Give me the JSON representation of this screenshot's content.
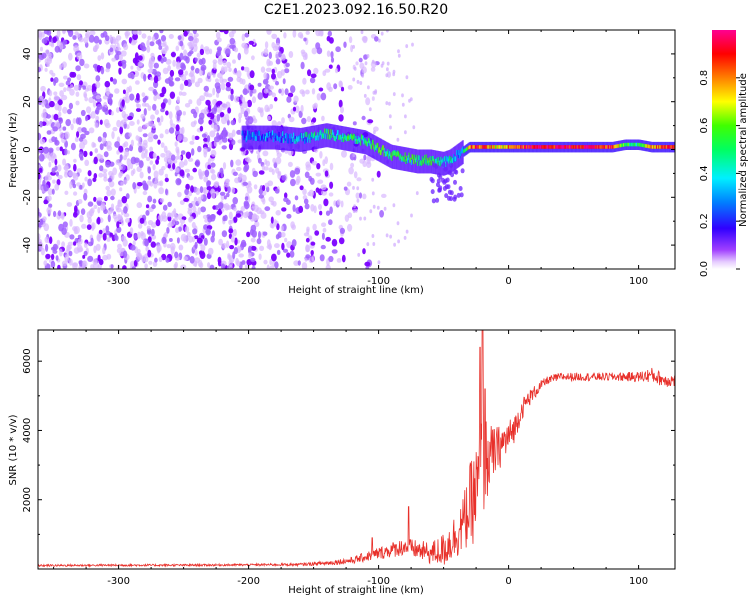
{
  "figure_title": "C2E1.2023.092.16.50.R20",
  "colors": {
    "axes": "#000000",
    "snr_line": "#e8302a",
    "sparse_dot": "#7b00ff",
    "background": "#ffffff"
  },
  "chart_data": [
    {
      "type": "heatmap",
      "title": "",
      "xlabel": "Height of straight line (km)",
      "ylabel": "Frequency (Hz)",
      "xlim": [
        -362,
        128
      ],
      "ylim": [
        -50,
        50
      ],
      "xticks": [
        -300,
        -200,
        -100,
        0,
        100
      ],
      "xtick_labels": [
        "-300",
        "-200",
        "-100",
        "0",
        "100"
      ],
      "yticks": [
        -40,
        -20,
        0,
        20,
        40
      ],
      "ytick_labels": [
        "-40",
        "-20",
        "0",
        "20",
        "40"
      ],
      "grid": false,
      "colorbar": {
        "label": "Normalized spectral amplitude",
        "range": [
          0,
          1
        ],
        "ticks": [
          0.0,
          0.2,
          0.4,
          0.6,
          0.8
        ],
        "tick_labels": [
          "0.0",
          "0.2",
          "0.4",
          "0.6",
          "0.8"
        ],
        "colormap": "gist_rainbow (white at 0, violet/blue low, green mid, red/magenta high)"
      },
      "noise_region": {
        "x_range": [
          -362,
          -120
        ],
        "description": "scattered low-amplitude noise across all frequencies"
      },
      "ridge": {
        "x": [
          -200,
          -180,
          -160,
          -150,
          -140,
          -130,
          -120,
          -110,
          -100,
          -90,
          -80,
          -70,
          -60,
          -50,
          -45,
          -40,
          -35,
          -30,
          -20,
          -10,
          0,
          20,
          40,
          60,
          80,
          90,
          100,
          110,
          128
        ],
        "freq": [
          5,
          5,
          4,
          5,
          6,
          5,
          4,
          3,
          0,
          -3,
          -4,
          -5,
          -5,
          -6,
          -5,
          -3,
          -1,
          1,
          1,
          1,
          1,
          1,
          1,
          1,
          1,
          2,
          2,
          1,
          1
        ],
        "amplitude": [
          0.3,
          0.3,
          0.35,
          0.45,
          0.5,
          0.5,
          0.5,
          0.5,
          0.55,
          0.5,
          0.5,
          0.5,
          0.5,
          0.45,
          0.4,
          0.35,
          0.4,
          0.85,
          0.9,
          0.7,
          0.8,
          0.95,
          0.95,
          0.95,
          0.9,
          0.55,
          0.5,
          0.8,
          0.85
        ]
      }
    },
    {
      "type": "line",
      "title": "",
      "xlabel": "Height of straight line (km)",
      "ylabel": "SNR (10 * v/v)",
      "xlim": [
        -362,
        128
      ],
      "ylim": [
        0,
        6900
      ],
      "xticks": [
        -300,
        -200,
        -100,
        0,
        100
      ],
      "xtick_labels": [
        "-300",
        "-200",
        "-100",
        "0",
        "100"
      ],
      "yticks": [
        2000,
        4000,
        6000
      ],
      "ytick_labels": [
        "2000",
        "4000",
        "6000"
      ],
      "grid": false,
      "series": [
        {
          "name": "SNR",
          "x": [
            -362,
            -300,
            -250,
            -200,
            -160,
            -140,
            -120,
            -110,
            -100,
            -90,
            -80,
            -70,
            -60,
            -50,
            -40,
            -35,
            -30,
            -25,
            -20,
            -15,
            -10,
            -5,
            0,
            5,
            10,
            15,
            20,
            25,
            30,
            40,
            50,
            60,
            80,
            100,
            110,
            120,
            128
          ],
          "y": [
            100,
            110,
            110,
            120,
            130,
            170,
            250,
            350,
            450,
            550,
            650,
            550,
            450,
            550,
            1000,
            1300,
            1800,
            2200,
            3000,
            3200,
            3400,
            3600,
            3800,
            4100,
            4600,
            4900,
            5100,
            5300,
            5450,
            5550,
            5550,
            5550,
            5550,
            5550,
            5600,
            5450,
            5450
          ],
          "noise_amplitude": [
            30,
            30,
            30,
            30,
            40,
            60,
            100,
            140,
            180,
            220,
            260,
            280,
            320,
            500,
            700,
            800,
            1200,
            1400,
            1600,
            1000,
            700,
            600,
            500,
            400,
            300,
            250,
            200,
            150,
            120,
            120,
            120,
            120,
            120,
            150,
            220,
            200,
            200
          ]
        }
      ],
      "annotations": [
        {
          "x": -20,
          "y": 6900,
          "text": "",
          "description": "sharp spike to top of axis near -20 km"
        },
        {
          "x": -77,
          "y": 1800,
          "text": "",
          "description": "spike near -77 km"
        }
      ]
    }
  ]
}
